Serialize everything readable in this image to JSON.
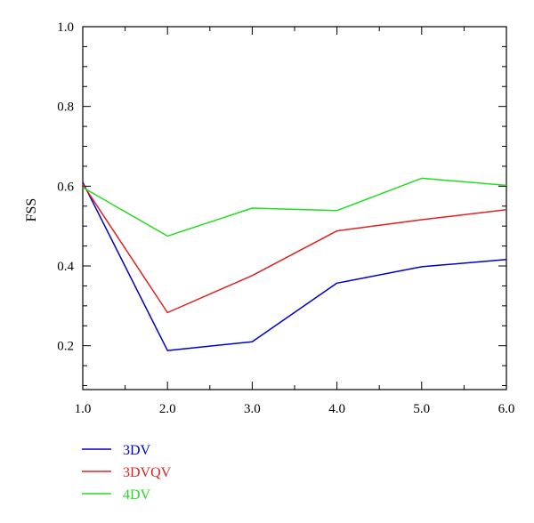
{
  "chart_data": {
    "type": "line",
    "title": "",
    "xlabel": "",
    "ylabel": "FSS",
    "xlim": [
      1.0,
      6.0
    ],
    "ylim": [
      0.09,
      1.0
    ],
    "x": [
      1.0,
      2.0,
      3.0,
      4.0,
      5.0,
      6.0
    ],
    "x_ticks": [
      "1.0",
      "2.0",
      "3.0",
      "4.0",
      "5.0",
      "6.0"
    ],
    "y_ticks": [
      "0.2",
      "0.4",
      "0.6",
      "0.8",
      "1.0"
    ],
    "grid": false,
    "legend_position": "bottom-left",
    "series": [
      {
        "name": "3DV",
        "color": "#0000cc",
        "values": [
          0.61,
          0.188,
          0.21,
          0.357,
          0.398,
          0.416
        ]
      },
      {
        "name": "3DVQV",
        "color": "#e02020",
        "values": [
          0.605,
          0.283,
          0.376,
          0.488,
          0.516,
          0.541
        ]
      },
      {
        "name": "4DV",
        "color": "#22dd22",
        "values": [
          0.597,
          0.475,
          0.545,
          0.539,
          0.62,
          0.602
        ]
      }
    ]
  }
}
